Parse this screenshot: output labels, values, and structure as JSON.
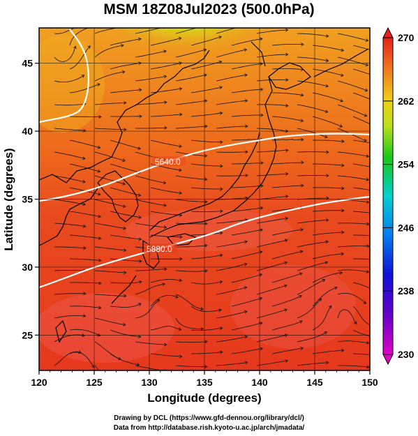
{
  "title": "MSM 18Z08Jul2023 (500.0hPa)",
  "axes": {
    "xlabel": "Longitude (degrees)",
    "ylabel": "Latitude  (degrees)",
    "xlim": [
      120,
      150
    ],
    "ylim": [
      22.4,
      47.6
    ],
    "xticks": [
      "120",
      "125",
      "130",
      "135",
      "140",
      "145",
      "150"
    ],
    "yticks": [
      "25",
      "30",
      "35",
      "40",
      "45"
    ]
  },
  "colorbar": {
    "ticks": [
      "270",
      "262",
      "254",
      "246",
      "238",
      "230"
    ],
    "min": 230,
    "max": 270
  },
  "contours": [
    {
      "label": "5640.0"
    },
    {
      "label": "5880.0"
    }
  ],
  "credits": {
    "line1": "Drawing by DCL (https://www.gfd-dennou.org/library/dcl/)",
    "line2": "Data from http://database.rish.kyoto-u.ac.jp/arch/jmadata/"
  },
  "colors": {
    "warm_red": "#e8321e",
    "orange": "#f07a1c",
    "yellow_green": "#c8e020",
    "contour": "#ffffff",
    "coast": "#000000"
  }
}
